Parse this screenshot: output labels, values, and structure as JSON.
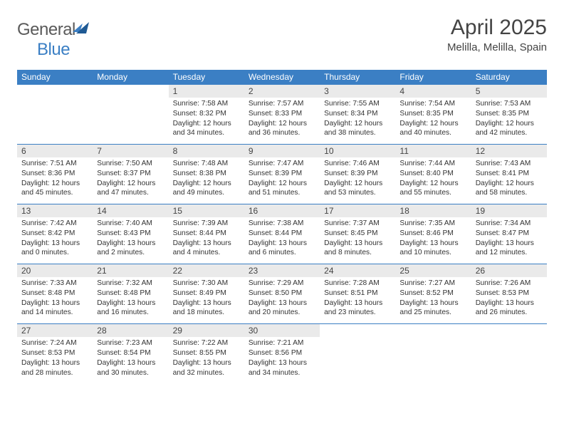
{
  "brand": {
    "text1": "General",
    "text2": "Blue"
  },
  "title": "April 2025",
  "location": "Melilla, Melilla, Spain",
  "colors": {
    "header_blue": "#3b7fc4",
    "daynum_bg": "#eaeaea",
    "text": "#444444"
  },
  "days_of_week": [
    "Sunday",
    "Monday",
    "Tuesday",
    "Wednesday",
    "Thursday",
    "Friday",
    "Saturday"
  ],
  "weeks": [
    [
      null,
      null,
      {
        "n": "1",
        "sr": "7:58 AM",
        "ss": "8:32 PM",
        "dl": "12 hours and 34 minutes."
      },
      {
        "n": "2",
        "sr": "7:57 AM",
        "ss": "8:33 PM",
        "dl": "12 hours and 36 minutes."
      },
      {
        "n": "3",
        "sr": "7:55 AM",
        "ss": "8:34 PM",
        "dl": "12 hours and 38 minutes."
      },
      {
        "n": "4",
        "sr": "7:54 AM",
        "ss": "8:35 PM",
        "dl": "12 hours and 40 minutes."
      },
      {
        "n": "5",
        "sr": "7:53 AM",
        "ss": "8:35 PM",
        "dl": "12 hours and 42 minutes."
      }
    ],
    [
      {
        "n": "6",
        "sr": "7:51 AM",
        "ss": "8:36 PM",
        "dl": "12 hours and 45 minutes."
      },
      {
        "n": "7",
        "sr": "7:50 AM",
        "ss": "8:37 PM",
        "dl": "12 hours and 47 minutes."
      },
      {
        "n": "8",
        "sr": "7:48 AM",
        "ss": "8:38 PM",
        "dl": "12 hours and 49 minutes."
      },
      {
        "n": "9",
        "sr": "7:47 AM",
        "ss": "8:39 PM",
        "dl": "12 hours and 51 minutes."
      },
      {
        "n": "10",
        "sr": "7:46 AM",
        "ss": "8:39 PM",
        "dl": "12 hours and 53 minutes."
      },
      {
        "n": "11",
        "sr": "7:44 AM",
        "ss": "8:40 PM",
        "dl": "12 hours and 55 minutes."
      },
      {
        "n": "12",
        "sr": "7:43 AM",
        "ss": "8:41 PM",
        "dl": "12 hours and 58 minutes."
      }
    ],
    [
      {
        "n": "13",
        "sr": "7:42 AM",
        "ss": "8:42 PM",
        "dl": "13 hours and 0 minutes."
      },
      {
        "n": "14",
        "sr": "7:40 AM",
        "ss": "8:43 PM",
        "dl": "13 hours and 2 minutes."
      },
      {
        "n": "15",
        "sr": "7:39 AM",
        "ss": "8:44 PM",
        "dl": "13 hours and 4 minutes."
      },
      {
        "n": "16",
        "sr": "7:38 AM",
        "ss": "8:44 PM",
        "dl": "13 hours and 6 minutes."
      },
      {
        "n": "17",
        "sr": "7:37 AM",
        "ss": "8:45 PM",
        "dl": "13 hours and 8 minutes."
      },
      {
        "n": "18",
        "sr": "7:35 AM",
        "ss": "8:46 PM",
        "dl": "13 hours and 10 minutes."
      },
      {
        "n": "19",
        "sr": "7:34 AM",
        "ss": "8:47 PM",
        "dl": "13 hours and 12 minutes."
      }
    ],
    [
      {
        "n": "20",
        "sr": "7:33 AM",
        "ss": "8:48 PM",
        "dl": "13 hours and 14 minutes."
      },
      {
        "n": "21",
        "sr": "7:32 AM",
        "ss": "8:48 PM",
        "dl": "13 hours and 16 minutes."
      },
      {
        "n": "22",
        "sr": "7:30 AM",
        "ss": "8:49 PM",
        "dl": "13 hours and 18 minutes."
      },
      {
        "n": "23",
        "sr": "7:29 AM",
        "ss": "8:50 PM",
        "dl": "13 hours and 20 minutes."
      },
      {
        "n": "24",
        "sr": "7:28 AM",
        "ss": "8:51 PM",
        "dl": "13 hours and 23 minutes."
      },
      {
        "n": "25",
        "sr": "7:27 AM",
        "ss": "8:52 PM",
        "dl": "13 hours and 25 minutes."
      },
      {
        "n": "26",
        "sr": "7:26 AM",
        "ss": "8:53 PM",
        "dl": "13 hours and 26 minutes."
      }
    ],
    [
      {
        "n": "27",
        "sr": "7:24 AM",
        "ss": "8:53 PM",
        "dl": "13 hours and 28 minutes."
      },
      {
        "n": "28",
        "sr": "7:23 AM",
        "ss": "8:54 PM",
        "dl": "13 hours and 30 minutes."
      },
      {
        "n": "29",
        "sr": "7:22 AM",
        "ss": "8:55 PM",
        "dl": "13 hours and 32 minutes."
      },
      {
        "n": "30",
        "sr": "7:21 AM",
        "ss": "8:56 PM",
        "dl": "13 hours and 34 minutes."
      },
      null,
      null,
      null
    ]
  ],
  "labels": {
    "sunrise": "Sunrise:",
    "sunset": "Sunset:",
    "daylight": "Daylight:"
  }
}
